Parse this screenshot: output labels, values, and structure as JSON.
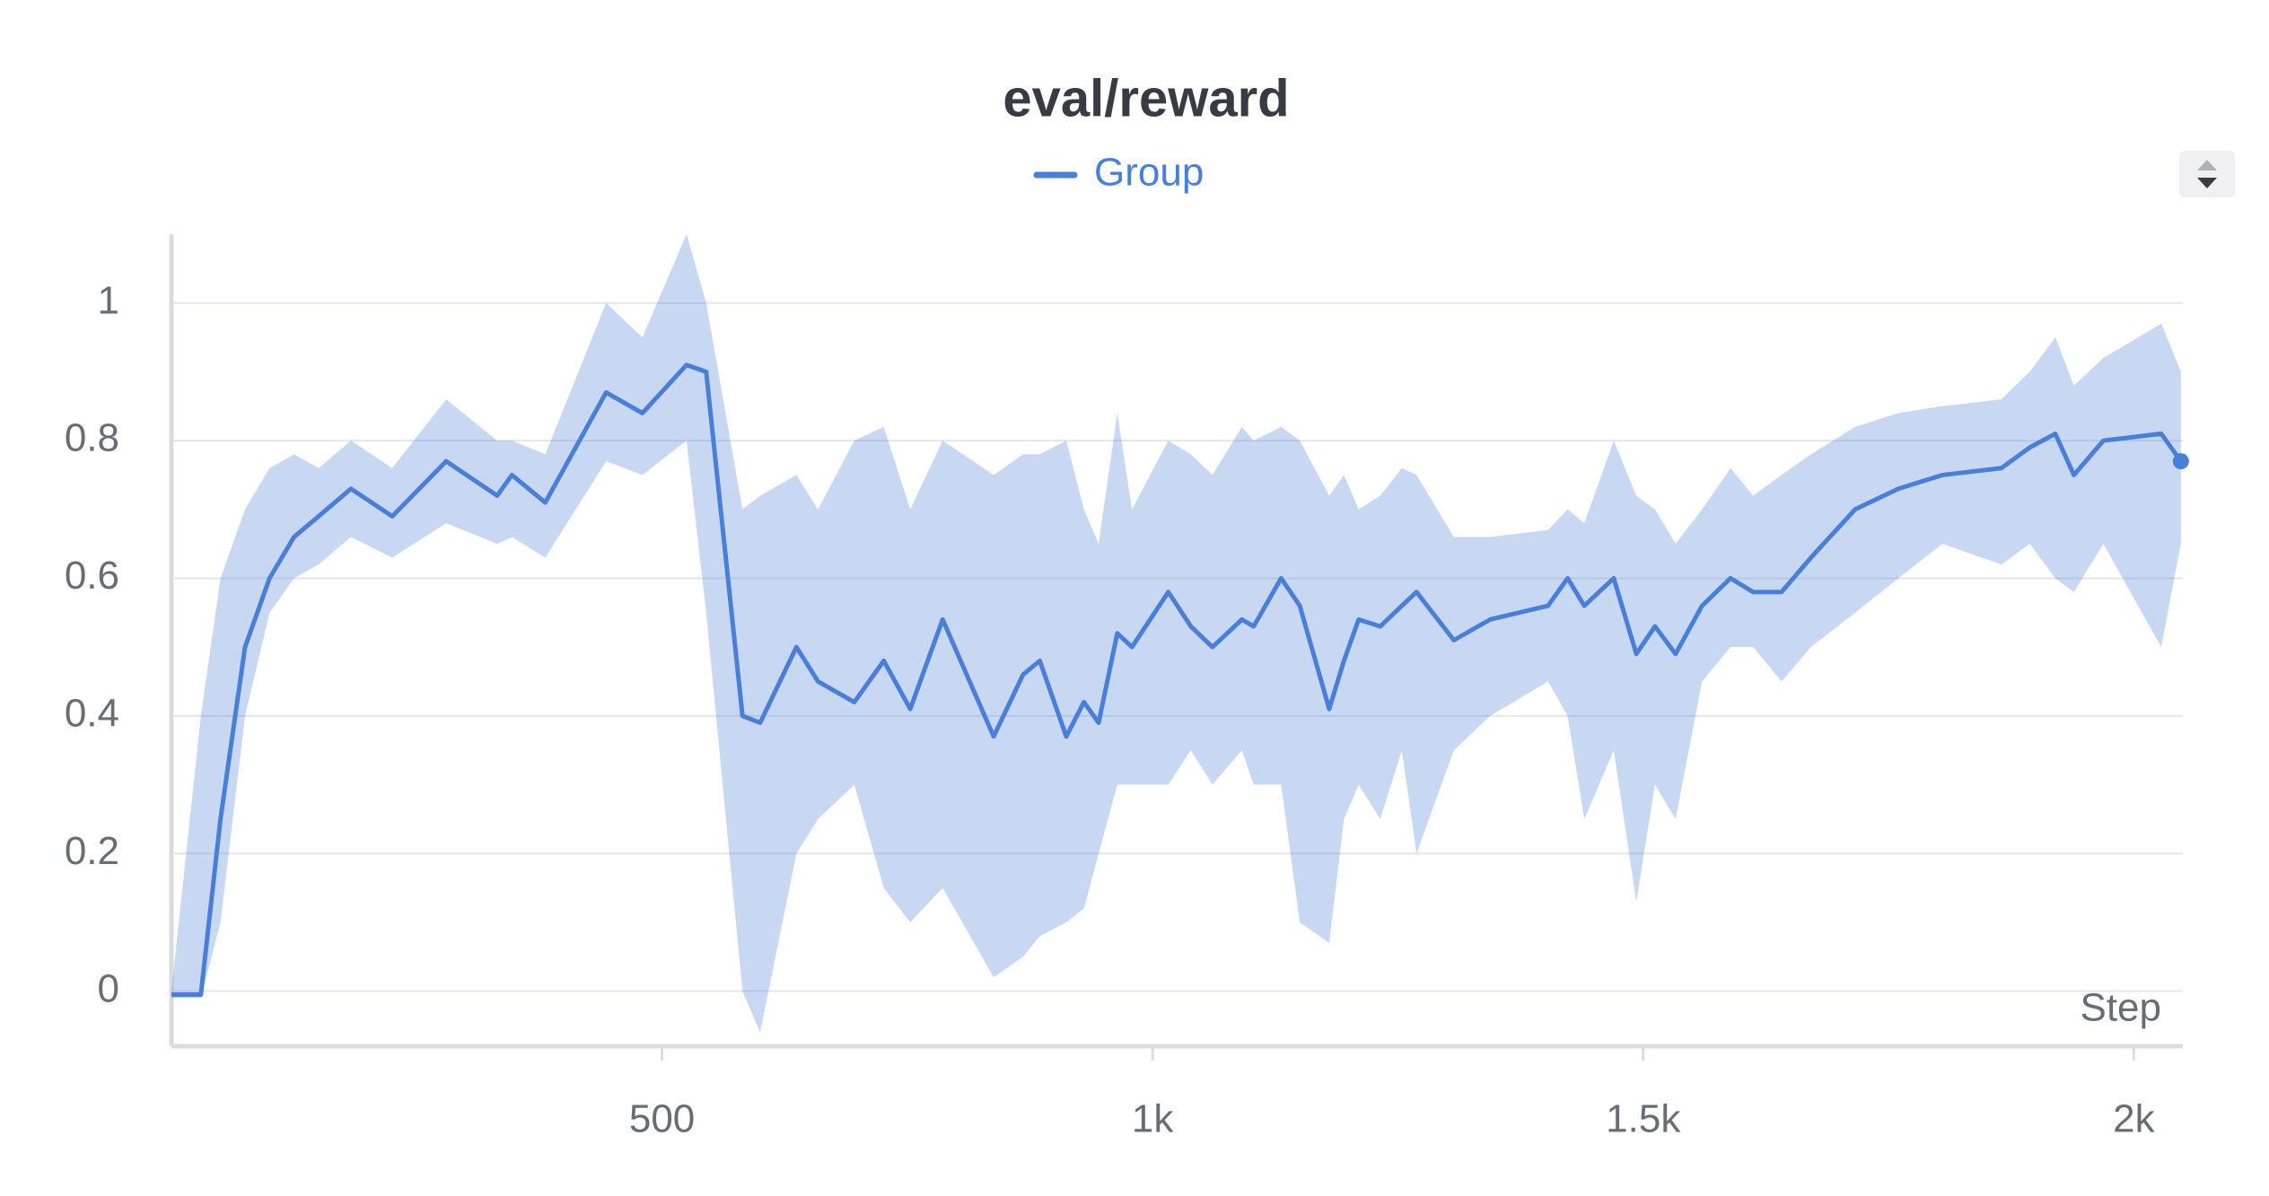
{
  "chart_data": {
    "type": "line",
    "title": "eval/reward",
    "xlabel": "Step",
    "x": [
      0,
      30,
      50,
      75,
      100,
      125,
      150,
      183,
      225,
      280,
      332,
      347,
      381,
      443,
      480,
      525,
      545,
      582,
      600,
      637,
      659,
      696,
      726,
      753,
      786,
      838,
      868,
      885,
      912,
      930,
      945,
      964,
      979,
      1016,
      1039,
      1061,
      1091,
      1103,
      1131,
      1150,
      1180,
      1195,
      1210,
      1232,
      1254,
      1269,
      1307,
      1344,
      1403,
      1423,
      1440,
      1470,
      1493,
      1512,
      1533,
      1560,
      1589,
      1612,
      1641,
      1671,
      1716,
      1760,
      1805,
      1865,
      1894,
      1920,
      1939,
      1969,
      2028,
      2048
    ],
    "series": [
      {
        "name": "Group",
        "color": "#4a7fd8",
        "values": [
          -0.005,
          -0.005,
          0.25,
          0.5,
          0.6,
          0.66,
          0.69,
          0.73,
          0.69,
          0.77,
          0.72,
          0.75,
          0.71,
          0.87,
          0.84,
          0.91,
          0.9,
          0.4,
          0.39,
          0.5,
          0.45,
          0.42,
          0.48,
          0.41,
          0.54,
          0.37,
          0.46,
          0.48,
          0.37,
          0.42,
          0.39,
          0.52,
          0.5,
          0.58,
          0.53,
          0.5,
          0.54,
          0.53,
          0.6,
          0.56,
          0.41,
          0.48,
          0.54,
          0.53,
          0.56,
          0.58,
          0.51,
          0.54,
          0.56,
          0.6,
          0.56,
          0.6,
          0.49,
          0.53,
          0.49,
          0.56,
          0.6,
          0.58,
          0.58,
          0.63,
          0.7,
          0.73,
          0.75,
          0.76,
          0.79,
          0.81,
          0.75,
          0.8,
          0.81,
          0.77
        ],
        "lower": [
          -0.01,
          -0.01,
          0.1,
          0.4,
          0.55,
          0.6,
          0.62,
          0.66,
          0.63,
          0.68,
          0.65,
          0.66,
          0.63,
          0.77,
          0.75,
          0.8,
          0.55,
          0.0,
          -0.06,
          0.2,
          0.25,
          0.3,
          0.15,
          0.1,
          0.15,
          0.02,
          0.05,
          0.08,
          0.1,
          0.12,
          0.2,
          0.3,
          0.3,
          0.3,
          0.35,
          0.3,
          0.35,
          0.3,
          0.3,
          0.1,
          0.07,
          0.25,
          0.3,
          0.25,
          0.35,
          0.2,
          0.35,
          0.4,
          0.45,
          0.4,
          0.25,
          0.35,
          0.13,
          0.3,
          0.25,
          0.45,
          0.5,
          0.5,
          0.45,
          0.5,
          0.55,
          0.6,
          0.65,
          0.62,
          0.65,
          0.6,
          0.58,
          0.65,
          0.5,
          0.65
        ],
        "upper": [
          0,
          0.4,
          0.6,
          0.7,
          0.76,
          0.78,
          0.76,
          0.8,
          0.76,
          0.86,
          0.8,
          0.8,
          0.78,
          1.0,
          0.95,
          1.1,
          1.0,
          0.7,
          0.72,
          0.75,
          0.7,
          0.8,
          0.82,
          0.7,
          0.8,
          0.75,
          0.78,
          0.78,
          0.8,
          0.7,
          0.65,
          0.84,
          0.7,
          0.8,
          0.78,
          0.75,
          0.82,
          0.8,
          0.82,
          0.8,
          0.72,
          0.75,
          0.7,
          0.72,
          0.76,
          0.75,
          0.66,
          0.66,
          0.67,
          0.7,
          0.68,
          0.8,
          0.72,
          0.7,
          0.65,
          0.7,
          0.76,
          0.72,
          0.75,
          0.78,
          0.82,
          0.84,
          0.85,
          0.86,
          0.9,
          0.95,
          0.88,
          0.92,
          0.97,
          0.9
        ]
      }
    ],
    "xlim": [
      0,
      2050
    ],
    "ylim": [
      -0.08,
      1.1
    ],
    "xticks": [
      {
        "value": 500,
        "label": "500"
      },
      {
        "value": 1000,
        "label": "1k"
      },
      {
        "value": 1500,
        "label": "1.5k"
      },
      {
        "value": 2000,
        "label": "2k"
      }
    ],
    "yticks": [
      0,
      0.2,
      0.4,
      0.6,
      0.8,
      1
    ],
    "grid": true,
    "legend": "top"
  }
}
